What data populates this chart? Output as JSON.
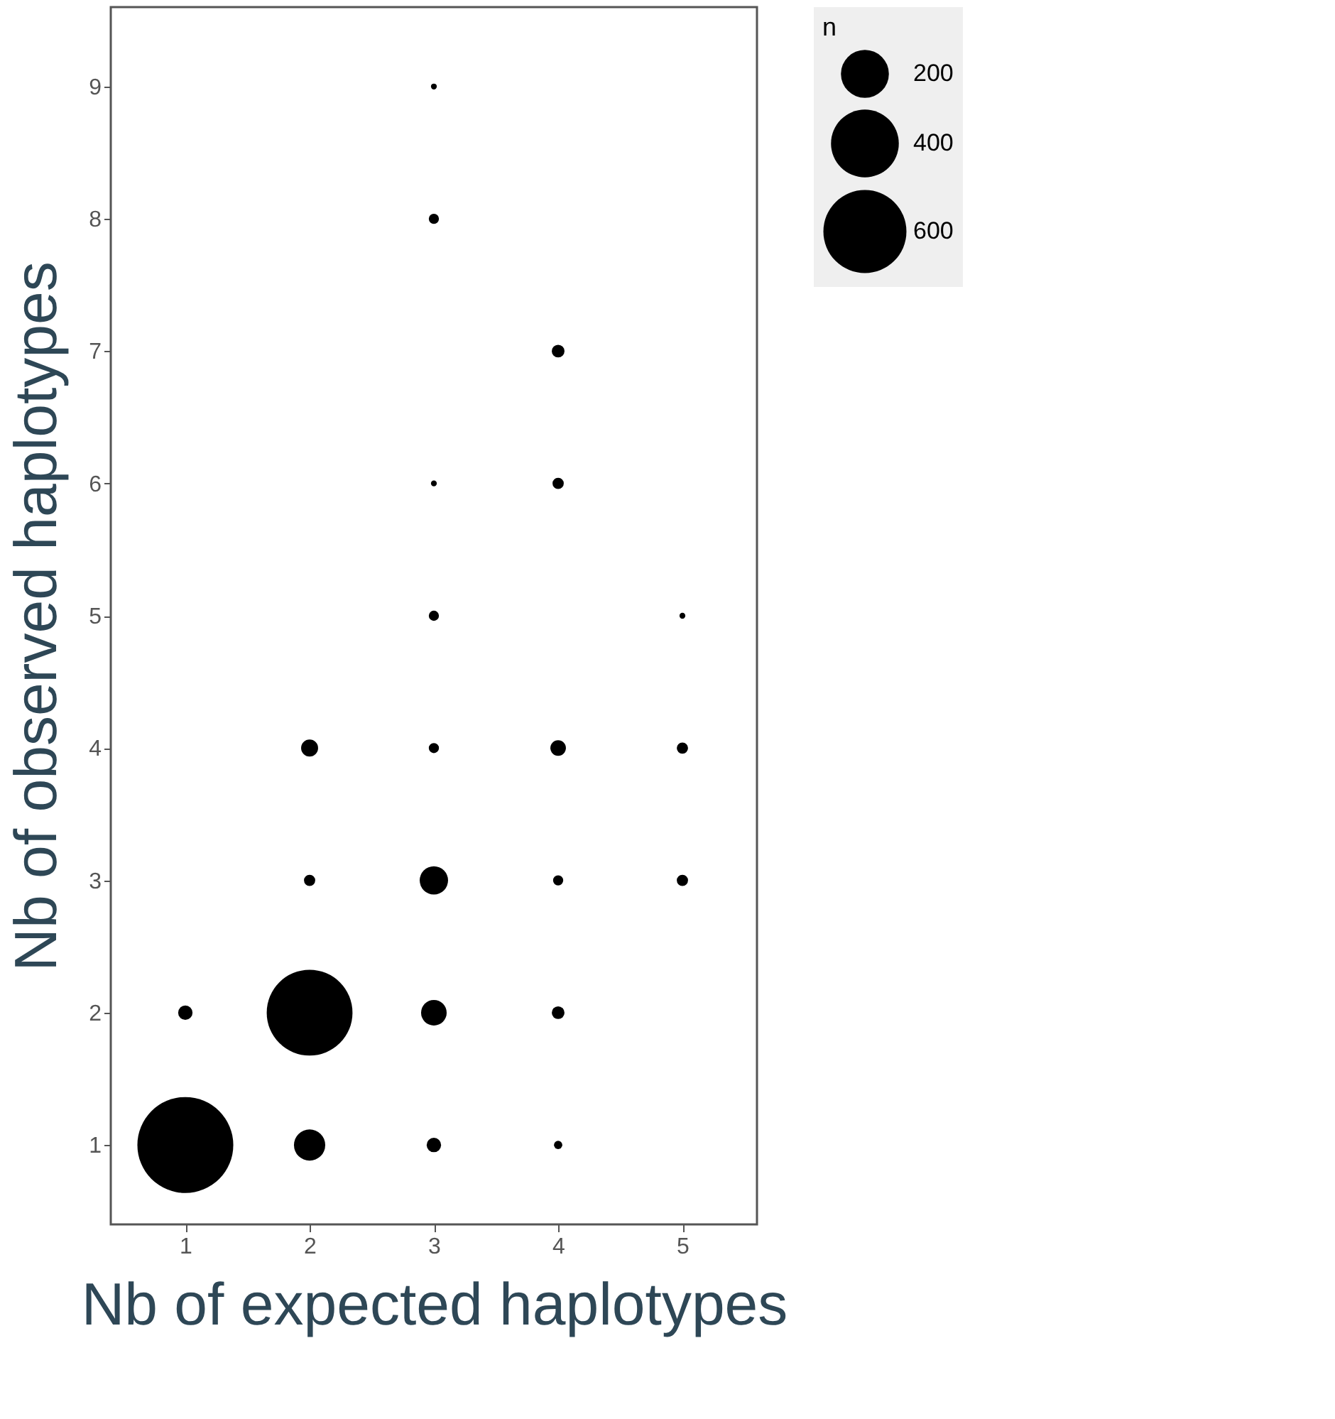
{
  "chart_data": {
    "type": "bubble",
    "xlabel": "Nb of expected haplotypes",
    "ylabel": "Nb of observed haplotypes",
    "legend_title": "n",
    "x": [
      1,
      1,
      2,
      2,
      2,
      2,
      3,
      3,
      3,
      3,
      3,
      3,
      3,
      3,
      4,
      4,
      4,
      4,
      4,
      4,
      5,
      5,
      5
    ],
    "values": [
      1,
      2,
      1,
      2,
      3,
      4,
      1,
      2,
      3,
      4,
      5,
      6,
      8,
      9,
      1,
      2,
      3,
      4,
      6,
      7,
      3,
      4,
      5
    ],
    "sizes": [
      800,
      18,
      85,
      640,
      11,
      25,
      18,
      57,
      70,
      9,
      9,
      3,
      9,
      3,
      6,
      14,
      9,
      21,
      11,
      14,
      11,
      11,
      3
    ],
    "size_legend": [
      200,
      400,
      600
    ],
    "color": "#000000",
    "xlim": [
      0.4,
      5.6
    ],
    "xticks": [
      1,
      2,
      3,
      4,
      5
    ],
    "ylim": [
      0.4,
      9.6
    ],
    "yticks": [
      1,
      2,
      3,
      4,
      5,
      6,
      7,
      8,
      9
    ],
    "grid": false
  }
}
